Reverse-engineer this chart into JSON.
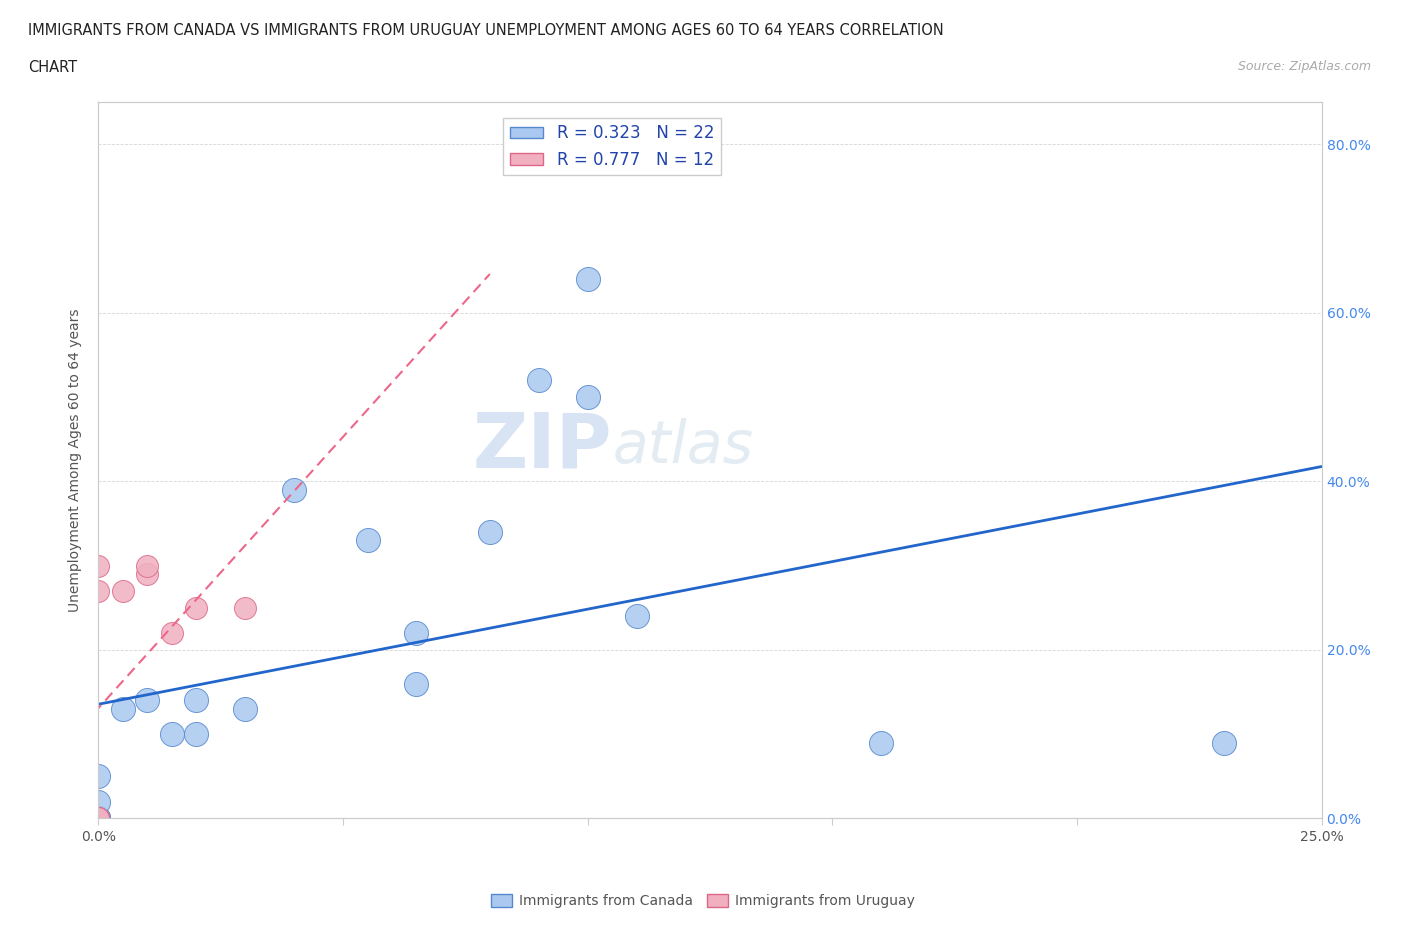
{
  "title_line1": "IMMIGRANTS FROM CANADA VS IMMIGRANTS FROM URUGUAY UNEMPLOYMENT AMONG AGES 60 TO 64 YEARS CORRELATION",
  "title_line2": "CHART",
  "source": "Source: ZipAtlas.com",
  "ylabel": "Unemployment Among Ages 60 to 64 years",
  "xlim": [
    0.0,
    0.25
  ],
  "ylim": [
    0.0,
    0.85
  ],
  "xtick_vals": [
    0.0,
    0.05,
    0.1,
    0.15,
    0.2,
    0.25
  ],
  "xtick_labels": [
    "0.0%",
    "",
    "",
    "",
    "",
    "25.0%"
  ],
  "ytick_vals": [
    0.0,
    0.2,
    0.4,
    0.6,
    0.8
  ],
  "ytick_labels_right": [
    "0.0%",
    "20.0%",
    "40.0%",
    "60.0%",
    "80.0%"
  ],
  "canada_color": "#aac8f0",
  "canada_edge": "#5588cc",
  "uruguay_color": "#f0b0c0",
  "uruguay_edge": "#dd6688",
  "canada_trend_color": "#2266cc",
  "uruguay_trend_color": "#ee6688",
  "canada_R": 0.323,
  "canada_N": 22,
  "uruguay_R": 0.777,
  "uruguay_N": 12,
  "watermark_zip": "ZIP",
  "watermark_atlas": "atlas",
  "canada_x": [
    0.0,
    0.0,
    0.0,
    0.0,
    0.0,
    0.005,
    0.01,
    0.015,
    0.02,
    0.02,
    0.03,
    0.04,
    0.055,
    0.065,
    0.065,
    0.08,
    0.09,
    0.1,
    0.1,
    0.11,
    0.16,
    0.23
  ],
  "canada_y": [
    0.0,
    0.0,
    0.0,
    0.02,
    0.05,
    0.13,
    0.14,
    0.1,
    0.14,
    0.1,
    0.13,
    0.39,
    0.33,
    0.16,
    0.22,
    0.34,
    0.52,
    0.5,
    0.64,
    0.24,
    0.09,
    0.09
  ],
  "uruguay_x": [
    0.0,
    0.0,
    0.0,
    0.0,
    0.0,
    0.0,
    0.005,
    0.01,
    0.01,
    0.015,
    0.02,
    0.03
  ],
  "uruguay_y": [
    0.0,
    0.0,
    0.0,
    0.0,
    0.27,
    0.3,
    0.27,
    0.29,
    0.3,
    0.22,
    0.25,
    0.25
  ]
}
